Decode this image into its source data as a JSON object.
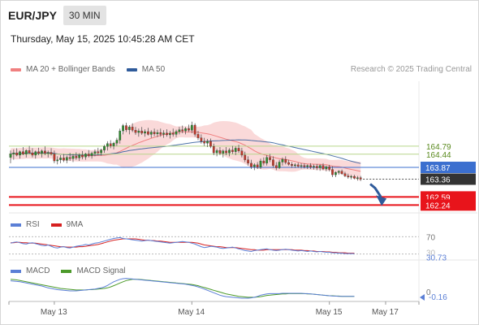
{
  "header": {
    "symbol": "EUR/JPY",
    "timeframe": "30 MIN",
    "datetime": "Thursday, May 15, 2025 10:45:28 AM CET"
  },
  "legend": {
    "ma20_label": "MA 20 + Bollinger Bands",
    "ma50_label": "MA 50",
    "copyright": "Research © 2025 Trading Central"
  },
  "colors": {
    "ma20": "#f08080",
    "ma50": "#2f5b9b",
    "bollinger_fill": "#f9d0d0",
    "candle_up": "#2e8b2e",
    "candle_down": "#c0392b",
    "resistance_line": "#b7d68a",
    "pivot_line": "#3b6fcf",
    "support_line": "#e8141b",
    "price_tag": "#333333",
    "rsi": "#5b7fd6",
    "rsi_ma": "#d62020",
    "macd": "#5b7fd6",
    "macd_signal": "#4c9a2a"
  },
  "levels": [
    {
      "value": 164.79,
      "label": "164.79",
      "type": "resistance"
    },
    {
      "value": 164.44,
      "label": "164.44",
      "type": "resistance"
    },
    {
      "value": 163.87,
      "label": "163.87",
      "type": "pivot"
    },
    {
      "value": 162.59,
      "label": "162.59",
      "type": "support"
    },
    {
      "value": 162.24,
      "label": "162.24",
      "type": "support"
    }
  ],
  "last_price": {
    "value": 163.36,
    "label": "163.36"
  },
  "rsi": {
    "legend_rsi": "RSI",
    "legend_ma": "9MA",
    "level_label": "70",
    "level_value": 70,
    "hidden_level_label": "30",
    "current_label": "30.73",
    "current_value": 30.73
  },
  "macd": {
    "legend_macd": "MACD",
    "legend_signal": "MACD Signal",
    "zero_label": "0",
    "current_label": "-0.16",
    "current_value": -0.16
  },
  "x_axis": {
    "labels": [
      {
        "text": "May 13",
        "bar": 14
      },
      {
        "text": "May 14",
        "bar": 58
      },
      {
        "text": "May 15",
        "bar": 102
      },
      {
        "text": "May 17",
        "bar": 120
      }
    ]
  },
  "chart_data": {
    "type": "candlestick",
    "title": "EUR/JPY 30 MIN",
    "ylim": [
      161.9,
      167.6
    ],
    "candles": {
      "columns": [
        "open",
        "high",
        "low",
        "close"
      ],
      "values": [
        [
          164.3,
          164.6,
          164.05,
          164.45
        ],
        [
          164.45,
          164.65,
          164.2,
          164.5
        ],
        [
          164.5,
          164.7,
          164.35,
          164.4
        ],
        [
          164.4,
          164.6,
          164.25,
          164.55
        ],
        [
          164.55,
          164.75,
          164.4,
          164.45
        ],
        [
          164.45,
          164.65,
          164.3,
          164.6
        ],
        [
          164.6,
          164.8,
          164.45,
          164.5
        ],
        [
          164.5,
          164.7,
          164.3,
          164.4
        ],
        [
          164.4,
          164.6,
          164.25,
          164.55
        ],
        [
          164.55,
          164.72,
          164.4,
          164.48
        ],
        [
          164.48,
          164.65,
          164.3,
          164.58
        ],
        [
          164.58,
          164.78,
          164.4,
          164.48
        ],
        [
          164.48,
          164.6,
          164.3,
          164.52
        ],
        [
          164.52,
          164.7,
          164.38,
          164.45
        ],
        [
          164.45,
          164.6,
          164.05,
          164.15
        ],
        [
          164.15,
          164.35,
          164.0,
          164.2
        ],
        [
          164.2,
          164.4,
          164.05,
          164.28
        ],
        [
          164.28,
          164.45,
          164.1,
          164.18
        ],
        [
          164.18,
          164.38,
          164.05,
          164.3
        ],
        [
          164.3,
          164.5,
          164.15,
          164.25
        ],
        [
          164.25,
          164.45,
          164.1,
          164.35
        ],
        [
          164.35,
          164.52,
          164.2,
          164.28
        ],
        [
          164.28,
          164.48,
          164.15,
          164.4
        ],
        [
          164.4,
          164.58,
          164.22,
          164.32
        ],
        [
          164.32,
          164.5,
          164.2,
          164.45
        ],
        [
          164.45,
          164.62,
          164.3,
          164.38
        ],
        [
          164.38,
          164.55,
          164.25,
          164.48
        ],
        [
          164.48,
          164.65,
          164.35,
          164.55
        ],
        [
          164.55,
          164.72,
          164.4,
          164.5
        ],
        [
          164.5,
          164.68,
          164.38,
          164.62
        ],
        [
          164.62,
          164.85,
          164.5,
          164.78
        ],
        [
          164.78,
          165.0,
          164.6,
          164.9
        ],
        [
          164.9,
          165.05,
          164.7,
          164.8
        ],
        [
          164.8,
          164.98,
          164.65,
          164.92
        ],
        [
          164.92,
          165.15,
          164.8,
          165.05
        ],
        [
          165.05,
          165.55,
          164.9,
          165.45
        ],
        [
          165.45,
          165.75,
          165.3,
          165.68
        ],
        [
          165.68,
          165.8,
          165.4,
          165.5
        ],
        [
          165.5,
          165.7,
          165.3,
          165.62
        ],
        [
          165.62,
          165.78,
          165.4,
          165.48
        ],
        [
          165.48,
          165.62,
          165.28,
          165.38
        ],
        [
          165.38,
          165.55,
          165.2,
          165.45
        ],
        [
          165.45,
          165.62,
          165.28,
          165.35
        ],
        [
          165.35,
          165.52,
          165.2,
          165.42
        ],
        [
          165.42,
          165.58,
          165.25,
          165.3
        ],
        [
          165.3,
          165.48,
          165.15,
          165.4
        ],
        [
          165.4,
          165.55,
          165.22,
          165.32
        ],
        [
          165.32,
          165.5,
          165.18,
          165.38
        ],
        [
          165.38,
          165.55,
          165.2,
          165.3
        ],
        [
          165.3,
          165.48,
          165.15,
          165.36
        ],
        [
          165.36,
          165.52,
          165.2,
          165.28
        ],
        [
          165.28,
          165.45,
          165.12,
          165.35
        ],
        [
          165.35,
          165.55,
          165.2,
          165.3
        ],
        [
          165.3,
          165.5,
          165.18,
          165.42
        ],
        [
          165.42,
          165.62,
          165.3,
          165.5
        ],
        [
          165.5,
          165.68,
          165.35,
          165.45
        ],
        [
          165.45,
          165.62,
          165.3,
          165.55
        ],
        [
          165.55,
          165.72,
          165.4,
          165.48
        ],
        [
          165.48,
          165.85,
          165.35,
          165.7
        ],
        [
          165.7,
          165.78,
          165.2,
          165.3
        ],
        [
          165.3,
          165.45,
          165.05,
          165.15
        ],
        [
          165.15,
          165.3,
          164.9,
          165.0
        ],
        [
          165.0,
          165.15,
          164.8,
          164.92
        ],
        [
          164.92,
          165.1,
          164.75,
          165.0
        ],
        [
          165.0,
          165.12,
          164.7,
          164.78
        ],
        [
          164.78,
          164.9,
          164.4,
          164.5
        ],
        [
          164.5,
          164.68,
          164.35,
          164.6
        ],
        [
          164.6,
          164.75,
          164.4,
          164.48
        ],
        [
          164.48,
          164.65,
          164.3,
          164.58
        ],
        [
          164.58,
          164.75,
          164.4,
          164.5
        ],
        [
          164.5,
          164.7,
          164.35,
          164.62
        ],
        [
          164.62,
          164.8,
          164.45,
          164.55
        ],
        [
          164.55,
          164.78,
          164.4,
          164.7
        ],
        [
          164.7,
          164.85,
          164.5,
          164.58
        ],
        [
          164.58,
          164.72,
          164.3,
          164.4
        ],
        [
          164.4,
          164.55,
          164.1,
          164.2
        ],
        [
          164.2,
          164.35,
          163.95,
          164.05
        ],
        [
          164.05,
          164.2,
          163.8,
          163.9
        ],
        [
          163.9,
          164.05,
          163.75,
          163.98
        ],
        [
          163.98,
          164.1,
          163.8,
          163.88
        ],
        [
          163.88,
          164.25,
          163.8,
          164.15
        ],
        [
          164.15,
          164.3,
          163.95,
          164.05
        ],
        [
          164.05,
          164.4,
          163.95,
          164.3
        ],
        [
          164.3,
          164.45,
          164.1,
          164.2
        ],
        [
          164.2,
          164.35,
          163.85,
          163.95
        ],
        [
          163.95,
          164.1,
          163.75,
          163.85
        ],
        [
          163.85,
          164.2,
          163.8,
          164.1
        ],
        [
          164.1,
          164.3,
          163.95,
          164.22
        ],
        [
          164.22,
          164.35,
          164.0,
          164.08
        ],
        [
          164.08,
          164.2,
          163.95,
          164.0
        ],
        [
          164.0,
          164.1,
          163.85,
          163.95
        ],
        [
          163.95,
          164.05,
          163.85,
          163.98
        ],
        [
          163.98,
          164.08,
          163.85,
          163.92
        ],
        [
          163.92,
          164.05,
          163.82,
          163.95
        ],
        [
          163.95,
          164.05,
          163.82,
          163.9
        ],
        [
          163.9,
          164.0,
          163.8,
          163.95
        ],
        [
          163.95,
          164.05,
          163.8,
          163.88
        ],
        [
          163.88,
          164.0,
          163.78,
          163.92
        ],
        [
          163.92,
          164.02,
          163.75,
          163.85
        ],
        [
          163.85,
          164.0,
          163.72,
          163.95
        ],
        [
          163.95,
          164.05,
          163.75,
          163.8
        ],
        [
          163.8,
          163.95,
          163.7,
          163.9
        ],
        [
          163.9,
          163.98,
          163.7,
          163.78
        ],
        [
          163.78,
          163.92,
          163.45,
          163.55
        ],
        [
          163.55,
          163.7,
          163.45,
          163.65
        ],
        [
          163.65,
          163.75,
          163.55,
          163.7
        ],
        [
          163.7,
          163.78,
          163.55,
          163.6
        ],
        [
          163.6,
          163.68,
          163.45,
          163.5
        ],
        [
          163.5,
          163.6,
          163.38,
          163.45
        ],
        [
          163.45,
          163.55,
          163.35,
          163.48
        ],
        [
          163.48,
          163.55,
          163.35,
          163.4
        ],
        [
          163.4,
          163.5,
          163.3,
          163.42
        ],
        [
          163.42,
          163.5,
          163.28,
          163.36
        ]
      ]
    },
    "projection": {
      "from_bar": 113,
      "from_price": 163.36,
      "to_bar": 119,
      "to_price": 162.24
    },
    "rsi_values": [
      55,
      57,
      58,
      56,
      54,
      53,
      55,
      56,
      54,
      52,
      50,
      49,
      51,
      48,
      45,
      44,
      46,
      47,
      45,
      44,
      46,
      48,
      49,
      50,
      52,
      51,
      53,
      55,
      56,
      58,
      60,
      62,
      64,
      66,
      67,
      68,
      66,
      65,
      64,
      63,
      62,
      61,
      60,
      61,
      62,
      61,
      60,
      59,
      58,
      57,
      56,
      55,
      56,
      57,
      58,
      59,
      58,
      57,
      55,
      53,
      50,
      47,
      45,
      46,
      48,
      47,
      46,
      44,
      43,
      44,
      45,
      46,
      44,
      42,
      40,
      38,
      37,
      36,
      38,
      39,
      40,
      41,
      42,
      40,
      39,
      38,
      39,
      40,
      41,
      40,
      39,
      38,
      37,
      38,
      37,
      36,
      37,
      36,
      35,
      36,
      35,
      34,
      34,
      33,
      33,
      32,
      32,
      31,
      31,
      31,
      30.73
    ],
    "rsi_ma_values": [
      56,
      56,
      57,
      57,
      56,
      56,
      55,
      55,
      55,
      54,
      53,
      52,
      51,
      50,
      49,
      48,
      47,
      47,
      46,
      46,
      46,
      46,
      47,
      47,
      48,
      49,
      50,
      51,
      52,
      54,
      56,
      58,
      60,
      62,
      63,
      64,
      65,
      65,
      65,
      65,
      65,
      64,
      63,
      62,
      62,
      61,
      61,
      60,
      60,
      59,
      58,
      57,
      57,
      57,
      57,
      57,
      57,
      57,
      57,
      56,
      55,
      53,
      51,
      50,
      49,
      48,
      47,
      47,
      46,
      45,
      45,
      45,
      45,
      44,
      43,
      42,
      41,
      40,
      40,
      39,
      39,
      39,
      40,
      40,
      40,
      40,
      40,
      40,
      40,
      40,
      40,
      39,
      39,
      39,
      38,
      38,
      37,
      37,
      36,
      36,
      36,
      35,
      35,
      34,
      34,
      33,
      33,
      33,
      32,
      32,
      32
    ],
    "macd_values": [
      0.35,
      0.34,
      0.33,
      0.32,
      0.3,
      0.28,
      0.26,
      0.24,
      0.22,
      0.2,
      0.18,
      0.15,
      0.12,
      0.1,
      0.08,
      0.06,
      0.05,
      0.04,
      0.03,
      0.02,
      0.02,
      0.02,
      0.03,
      0.04,
      0.05,
      0.06,
      0.07,
      0.08,
      0.1,
      0.12,
      0.15,
      0.2,
      0.26,
      0.32,
      0.36,
      0.4,
      0.42,
      0.43,
      0.42,
      0.41,
      0.4,
      0.39,
      0.38,
      0.37,
      0.36,
      0.35,
      0.34,
      0.33,
      0.32,
      0.31,
      0.3,
      0.29,
      0.28,
      0.27,
      0.26,
      0.25,
      0.24,
      0.22,
      0.2,
      0.18,
      0.15,
      0.12,
      0.08,
      0.04,
      0.0,
      -0.04,
      -0.08,
      -0.12,
      -0.15,
      -0.17,
      -0.18,
      -0.19,
      -0.2,
      -0.21,
      -0.22,
      -0.22,
      -0.22,
      -0.21,
      -0.19,
      -0.16,
      -0.12,
      -0.1,
      -0.08,
      -0.07,
      -0.07,
      -0.07,
      -0.07,
      -0.06,
      -0.06,
      -0.06,
      -0.06,
      -0.06,
      -0.06,
      -0.06,
      -0.07,
      -0.07,
      -0.08,
      -0.09,
      -0.1,
      -0.11,
      -0.12,
      -0.13,
      -0.14,
      -0.15,
      -0.15,
      -0.16,
      -0.16,
      -0.16,
      -0.16,
      -0.16,
      -0.16
    ],
    "macd_signal_values": [
      0.4,
      0.39,
      0.38,
      0.36,
      0.34,
      0.32,
      0.3,
      0.28,
      0.26,
      0.24,
      0.22,
      0.2,
      0.18,
      0.16,
      0.14,
      0.12,
      0.1,
      0.09,
      0.08,
      0.07,
      0.06,
      0.05,
      0.05,
      0.05,
      0.05,
      0.06,
      0.06,
      0.07,
      0.08,
      0.09,
      0.1,
      0.12,
      0.15,
      0.19,
      0.23,
      0.28,
      0.32,
      0.36,
      0.38,
      0.4,
      0.4,
      0.4,
      0.39,
      0.38,
      0.37,
      0.36,
      0.35,
      0.34,
      0.33,
      0.32,
      0.31,
      0.3,
      0.29,
      0.28,
      0.27,
      0.26,
      0.25,
      0.24,
      0.23,
      0.21,
      0.19,
      0.16,
      0.13,
      0.1,
      0.07,
      0.04,
      0.01,
      -0.02,
      -0.05,
      -0.08,
      -0.1,
      -0.12,
      -0.14,
      -0.16,
      -0.17,
      -0.18,
      -0.19,
      -0.19,
      -0.19,
      -0.18,
      -0.17,
      -0.15,
      -0.13,
      -0.12,
      -0.11,
      -0.1,
      -0.09,
      -0.08,
      -0.08,
      -0.07,
      -0.07,
      -0.07,
      -0.07,
      -0.07,
      -0.07,
      -0.08,
      -0.08,
      -0.09,
      -0.1,
      -0.11,
      -0.12,
      -0.13,
      -0.14,
      -0.14,
      -0.15,
      -0.15,
      -0.16,
      -0.16,
      -0.16,
      -0.16,
      -0.16
    ]
  }
}
